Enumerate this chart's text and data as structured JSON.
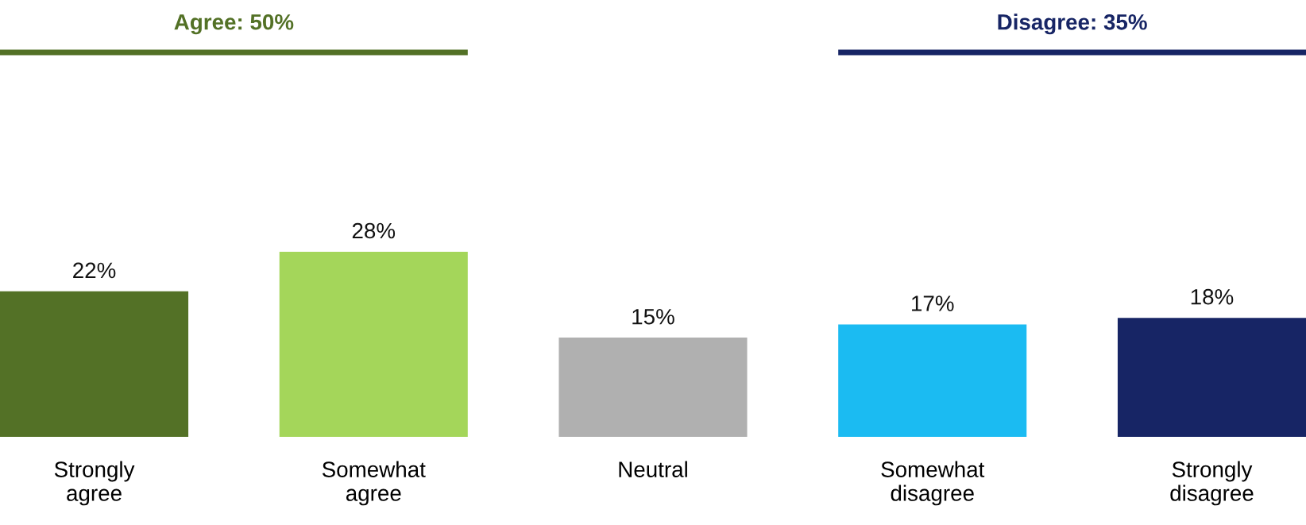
{
  "chart_data": {
    "type": "bar",
    "categories": [
      "Strongly\nagree",
      "Somewhat\nagree",
      "Neutral",
      "Somewhat\ndisagree",
      "Strongly\ndisagree"
    ],
    "values": [
      22,
      28,
      15,
      17,
      18
    ],
    "colors": [
      "#537126",
      "#a4d65a",
      "#b0b0b0",
      "#1bbbf2",
      "#172565"
    ],
    "value_labels": [
      "22%",
      "28%",
      "15%",
      "17%",
      "18%"
    ],
    "annotations": [
      "Agree: 50%",
      "Disagree: 35%"
    ]
  }
}
